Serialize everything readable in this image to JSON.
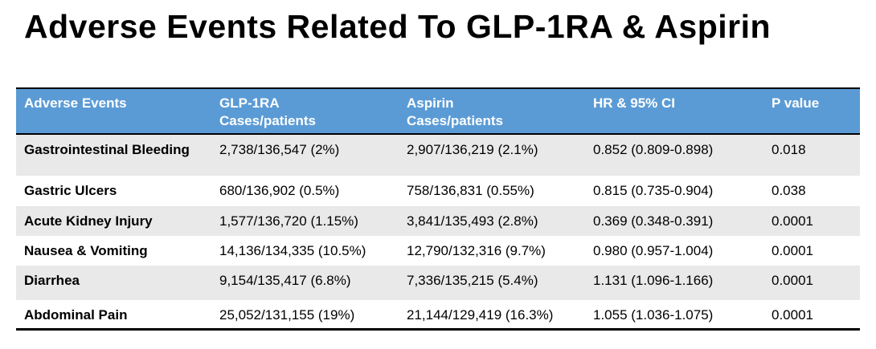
{
  "title": "Adverse Events Related To GLP-1RA & Aspirin",
  "colors": {
    "header_bg": "#5B9BD5",
    "header_text": "#FFFFFF",
    "stripe_bg": "#E9E9E9",
    "border": "#000000",
    "title_text": "#000000"
  },
  "table": {
    "headers": [
      {
        "line1": "Adverse Events",
        "line2": ""
      },
      {
        "line1": "GLP-1RA",
        "line2": "Cases/patients"
      },
      {
        "line1": "Aspirin",
        "line2": "Cases/patients"
      },
      {
        "line1": "HR & 95% CI",
        "line2": ""
      },
      {
        "line1": "P value",
        "line2": ""
      }
    ]
  },
  "chart_data": {
    "type": "table",
    "title": "Adverse Events Related To GLP-1RA & Aspirin",
    "columns": [
      "Adverse Events",
      "GLP-1RA Cases/patients",
      "Aspirin Cases/patients",
      "HR & 95% CI",
      "P value"
    ],
    "rows": [
      [
        "Gastrointestinal Bleeding",
        "2,738/136,547 (2%)",
        "2,907/136,219 (2.1%)",
        "0.852 (0.809-0.898)",
        "0.018"
      ],
      [
        "Gastric Ulcers",
        "680/136,902 (0.5%)",
        "758/136,831 (0.55%)",
        "0.815 (0.735-0.904)",
        "0.038"
      ],
      [
        "Acute Kidney Injury",
        "1,577/136,720 (1.15%)",
        "3,841/135,493 (2.8%)",
        "0.369 (0.348-0.391)",
        "0.0001"
      ],
      [
        "Nausea & Vomiting",
        "14,136/134,335 (10.5%)",
        "12,790/132,316 (9.7%)",
        "0.980 (0.957-1.004)",
        "0.0001"
      ],
      [
        "Diarrhea",
        "9,154/135,417 (6.8%)",
        "7,336/135,215 (5.4%)",
        "1.131 (1.096-1.166)",
        "0.0001"
      ],
      [
        "Abdominal Pain",
        "25,052/131,155 (19%)",
        "21,144/129,419 (16.3%)",
        "1.055 (1.036-1.075)",
        "0.0001"
      ]
    ]
  }
}
